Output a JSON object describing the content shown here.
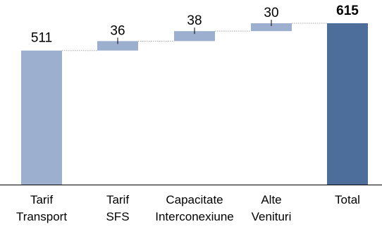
{
  "chart_data": {
    "type": "bar",
    "subtype": "waterfall",
    "categories": [
      [
        "Tarif",
        "Transport"
      ],
      [
        "Tarif",
        "SFS"
      ],
      [
        "Capacitate",
        "Interconexiune"
      ],
      [
        "Alte",
        "Venituri"
      ],
      [
        "Total"
      ]
    ],
    "values": [
      511,
      36,
      38,
      30,
      615
    ],
    "value_labels": [
      "511",
      "36",
      "38",
      "30",
      "615"
    ],
    "bar_kinds": [
      "total",
      "delta",
      "delta",
      "delta",
      "total"
    ],
    "bold_labels": [
      false,
      false,
      false,
      false,
      true
    ],
    "title": "",
    "xlabel": "",
    "ylabel": "",
    "ylim": [
      0,
      615
    ],
    "grid": false,
    "legend": "none",
    "colors": {
      "start_bar": "#9CAFCE",
      "delta_bar": "#9CAFCE",
      "total_bar": "#4D6D9A",
      "connector": "#A6A6A6",
      "axis": "#000000",
      "text": "#000000"
    }
  }
}
